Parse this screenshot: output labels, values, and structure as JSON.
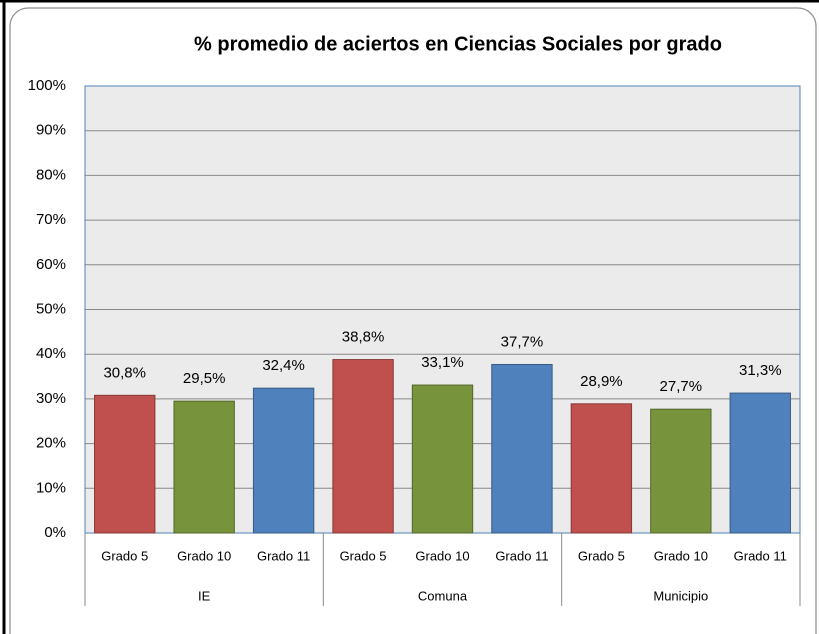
{
  "chart_data": {
    "type": "bar",
    "title": "% promedio de aciertos en Ciencias Sociales por grado",
    "categories": [
      "Grado 5",
      "Grado 10",
      "Grado 11",
      "Grado 5",
      "Grado 10",
      "Grado 11",
      "Grado 5",
      "Grado 10",
      "Grado 11"
    ],
    "groups": [
      "IE",
      "Comuna",
      "Municipio"
    ],
    "values": [
      30.8,
      29.5,
      32.4,
      38.8,
      33.1,
      37.7,
      28.9,
      27.7,
      31.3
    ],
    "value_labels": [
      "30,8%",
      "29,5%",
      "32,4%",
      "38,8%",
      "33,1%",
      "37,7%",
      "28,9%",
      "27,7%",
      "31,3%"
    ],
    "colors": [
      "#c0504d",
      "#77933c",
      "#4f81bd",
      "#c0504d",
      "#77933c",
      "#4f81bd",
      "#c0504d",
      "#77933c",
      "#4f81bd"
    ],
    "ylim": [
      0,
      100
    ],
    "yticks": [
      {
        "value": 0,
        "label": "0%"
      },
      {
        "value": 10,
        "label": "10%"
      },
      {
        "value": 20,
        "label": "20%"
      },
      {
        "value": 30,
        "label": "30%"
      },
      {
        "value": 40,
        "label": "40%"
      },
      {
        "value": 50,
        "label": "50%"
      },
      {
        "value": 60,
        "label": "60%"
      },
      {
        "value": 70,
        "label": "70%"
      },
      {
        "value": 80,
        "label": "80%"
      },
      {
        "value": 90,
        "label": "90%"
      },
      {
        "value": 100,
        "label": "100%"
      }
    ],
    "grid": true
  }
}
